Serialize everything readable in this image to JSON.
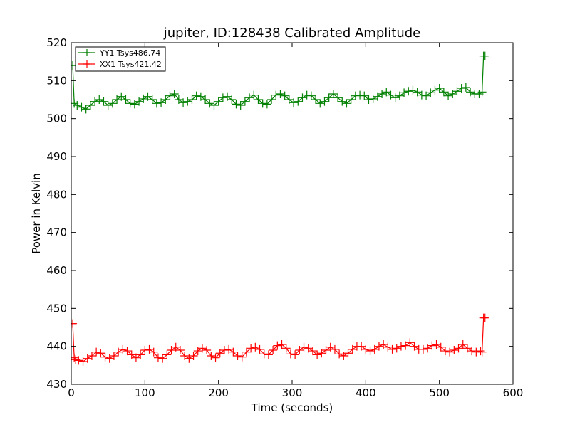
{
  "chart_data": {
    "type": "line",
    "title": "jupiter, ID:128438 Calibrated Amplitude",
    "xlabel": "Time (seconds)",
    "ylabel": "Power in Kelvin",
    "xlim": [
      0,
      600
    ],
    "ylim": [
      430,
      520
    ],
    "xticks": [
      0,
      100,
      200,
      300,
      400,
      500,
      600
    ],
    "yticks": [
      430,
      440,
      450,
      460,
      470,
      480,
      490,
      500,
      510,
      520
    ],
    "grid": false,
    "legend_position": "top-left",
    "marker": "+",
    "series": [
      {
        "name": "YY1 Tsys486.74",
        "color": "#008000",
        "x": [
          0,
          2,
          4,
          8,
          14,
          20,
          26,
          32,
          38,
          44,
          50,
          56,
          62,
          68,
          74,
          80,
          86,
          92,
          98,
          104,
          110,
          116,
          122,
          128,
          134,
          140,
          146,
          152,
          158,
          164,
          170,
          176,
          182,
          188,
          194,
          200,
          206,
          212,
          218,
          224,
          230,
          236,
          242,
          248,
          254,
          260,
          266,
          272,
          278,
          284,
          290,
          296,
          302,
          308,
          314,
          320,
          326,
          332,
          338,
          344,
          350,
          356,
          362,
          368,
          374,
          380,
          386,
          392,
          398,
          404,
          410,
          416,
          422,
          428,
          434,
          440,
          446,
          452,
          458,
          464,
          470,
          476,
          482,
          488,
          494,
          500,
          506,
          512,
          518,
          524,
          530,
          536,
          542,
          548,
          554,
          558,
          560,
          562
        ],
        "values": [
          514,
          514,
          504,
          503.5,
          503,
          502.5,
          503.5,
          504.5,
          505,
          504.5,
          503.5,
          504,
          505,
          505.8,
          505,
          504,
          503.8,
          504.5,
          505.2,
          505.8,
          505,
          504,
          504.2,
          505,
          506,
          506.5,
          505,
          504.2,
          504.5,
          505,
          506,
          505.8,
          505,
          504,
          503.5,
          504.5,
          505.5,
          505.8,
          505,
          503.8,
          503.5,
          504.5,
          505.5,
          506.2,
          505,
          504,
          503.8,
          505,
          506.2,
          506.5,
          506,
          505,
          504.2,
          504.5,
          505.5,
          506.2,
          506,
          505,
          504,
          504.5,
          505.5,
          506.5,
          505.5,
          504.5,
          504,
          505,
          506,
          506.2,
          506,
          505,
          505.2,
          505.8,
          506.5,
          507,
          506.2,
          505.5,
          506,
          506.8,
          507.2,
          507.5,
          507,
          506.2,
          506,
          506.8,
          507.5,
          508,
          507,
          506,
          506.5,
          507.2,
          508,
          508.2,
          507,
          506.5,
          506.5,
          507,
          516.5,
          516.5
        ]
      },
      {
        "name": "XX1 Tsys421.42",
        "color": "#ff0000",
        "x": [
          0,
          2,
          4,
          6,
          10,
          16,
          22,
          28,
          34,
          40,
          46,
          52,
          58,
          64,
          70,
          76,
          82,
          88,
          94,
          100,
          106,
          112,
          118,
          124,
          130,
          136,
          142,
          148,
          154,
          160,
          166,
          172,
          178,
          184,
          190,
          196,
          202,
          208,
          214,
          220,
          226,
          232,
          238,
          244,
          250,
          256,
          262,
          268,
          274,
          280,
          286,
          292,
          298,
          304,
          310,
          316,
          322,
          328,
          334,
          340,
          346,
          352,
          358,
          364,
          370,
          376,
          382,
          388,
          394,
          400,
          406,
          412,
          418,
          424,
          430,
          436,
          442,
          448,
          454,
          460,
          466,
          472,
          478,
          484,
          490,
          496,
          502,
          508,
          514,
          520,
          526,
          532,
          538,
          544,
          550,
          556,
          558,
          560,
          562
        ],
        "values": [
          446,
          446,
          437,
          436.5,
          436.3,
          436,
          436.8,
          437.5,
          438.5,
          438.2,
          437.2,
          436.8,
          437.5,
          438.5,
          439.2,
          438.8,
          437.8,
          437,
          437.8,
          439,
          439.2,
          438.5,
          437,
          436.8,
          437.8,
          439,
          439.8,
          439,
          437.5,
          436.8,
          437.5,
          438.8,
          439.5,
          439,
          437.5,
          437,
          438.2,
          439,
          439.2,
          438.5,
          437.5,
          437.2,
          438.5,
          439.5,
          439.8,
          439.2,
          438,
          437.8,
          439,
          440.2,
          440.5,
          439.5,
          438,
          437.8,
          439,
          439.8,
          439.5,
          438.8,
          437.8,
          438.2,
          439,
          439.8,
          439.2,
          438,
          437.5,
          438.2,
          439.2,
          440,
          440,
          439.2,
          438.8,
          439.2,
          440,
          440.5,
          439.8,
          439.2,
          439.5,
          440,
          440.2,
          441,
          440,
          439.2,
          439.2,
          439.5,
          440.2,
          440.5,
          439.8,
          438.8,
          438.5,
          439,
          439.5,
          440.5,
          439.5,
          438.8,
          438.5,
          438.8,
          438.5,
          447.5,
          447.5
        ]
      }
    ]
  }
}
